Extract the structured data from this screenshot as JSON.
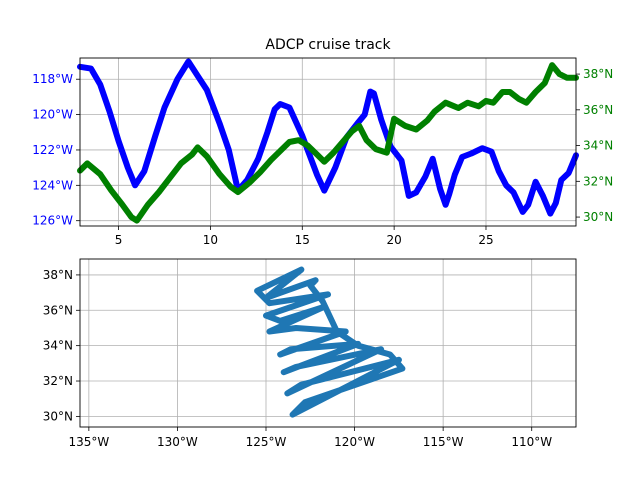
{
  "chart_data": [
    {
      "type": "line",
      "title": "ADCP cruise track",
      "xlim": [
        2.9,
        29.9
      ],
      "x_ticks": [
        5,
        10,
        15,
        20,
        25
      ],
      "x_tick_labels": [
        "5",
        "10",
        "15",
        "20",
        "25"
      ],
      "grid": true,
      "left_axis": {
        "color": "#0000ff",
        "ylim": [
          -126.3,
          -116.8
        ],
        "ticks": [
          -118,
          -120,
          -122,
          -124,
          -126
        ],
        "tick_labels": [
          "118°W",
          "120°W",
          "122°W",
          "124°W",
          "126°W"
        ]
      },
      "right_axis": {
        "color": "#008000",
        "ylim": [
          29.5,
          38.9
        ],
        "ticks": [
          30,
          32,
          34,
          36,
          38
        ],
        "tick_labels": [
          "30°N",
          "32°N",
          "34°N",
          "36°N",
          "38°N"
        ]
      },
      "series": [
        {
          "axis": "left",
          "color": "#0000ff",
          "points": [
            [
              2.9,
              -117.3
            ],
            [
              3.5,
              -117.4
            ],
            [
              4.0,
              -118.3
            ],
            [
              4.5,
              -119.8
            ],
            [
              5.0,
              -121.5
            ],
            [
              5.5,
              -123.0
            ],
            [
              5.9,
              -124.0
            ],
            [
              6.4,
              -123.2
            ],
            [
              7.0,
              -121.2
            ],
            [
              7.5,
              -119.6
            ],
            [
              8.2,
              -118.0
            ],
            [
              8.8,
              -117.0
            ],
            [
              9.3,
              -117.8
            ],
            [
              9.8,
              -118.6
            ],
            [
              10.5,
              -120.5
            ],
            [
              11.0,
              -122.0
            ],
            [
              11.5,
              -124.3
            ],
            [
              12.0,
              -123.7
            ],
            [
              12.6,
              -122.5
            ],
            [
              13.1,
              -121.0
            ],
            [
              13.5,
              -119.7
            ],
            [
              13.8,
              -119.4
            ],
            [
              14.3,
              -119.6
            ],
            [
              15.0,
              -121.2
            ],
            [
              15.8,
              -123.4
            ],
            [
              16.2,
              -124.3
            ],
            [
              16.8,
              -123.0
            ],
            [
              17.4,
              -121.3
            ],
            [
              18.0,
              -120.5
            ],
            [
              18.4,
              -120.0
            ],
            [
              18.7,
              -118.7
            ],
            [
              18.9,
              -118.8
            ],
            [
              19.3,
              -120.3
            ],
            [
              19.8,
              -121.8
            ],
            [
              20.4,
              -122.6
            ],
            [
              20.8,
              -124.6
            ],
            [
              21.2,
              -124.4
            ],
            [
              21.7,
              -123.5
            ],
            [
              22.1,
              -122.5
            ],
            [
              22.5,
              -124.2
            ],
            [
              22.8,
              -125.1
            ],
            [
              23.0,
              -124.5
            ],
            [
              23.3,
              -123.4
            ],
            [
              23.7,
              -122.4
            ],
            [
              24.2,
              -122.2
            ],
            [
              24.8,
              -121.9
            ],
            [
              25.3,
              -122.1
            ],
            [
              25.7,
              -123.2
            ],
            [
              26.1,
              -124.0
            ],
            [
              26.5,
              -124.4
            ],
            [
              27.0,
              -125.5
            ],
            [
              27.3,
              -125.1
            ],
            [
              27.7,
              -123.8
            ],
            [
              28.1,
              -124.6
            ],
            [
              28.5,
              -125.6
            ],
            [
              28.8,
              -125.0
            ],
            [
              29.1,
              -123.7
            ],
            [
              29.5,
              -123.3
            ],
            [
              29.9,
              -122.3
            ]
          ]
        },
        {
          "axis": "right",
          "color": "#008000",
          "points": [
            [
              2.9,
              32.6
            ],
            [
              3.3,
              33.0
            ],
            [
              4.0,
              32.4
            ],
            [
              4.6,
              31.5
            ],
            [
              5.2,
              30.7
            ],
            [
              5.7,
              30.0
            ],
            [
              6.0,
              29.8
            ],
            [
              6.6,
              30.7
            ],
            [
              7.2,
              31.4
            ],
            [
              7.8,
              32.2
            ],
            [
              8.4,
              33.0
            ],
            [
              9.0,
              33.5
            ],
            [
              9.3,
              33.9
            ],
            [
              9.8,
              33.4
            ],
            [
              10.5,
              32.4
            ],
            [
              11.1,
              31.7
            ],
            [
              11.5,
              31.4
            ],
            [
              12.1,
              31.9
            ],
            [
              12.7,
              32.5
            ],
            [
              13.3,
              33.2
            ],
            [
              13.9,
              33.8
            ],
            [
              14.3,
              34.2
            ],
            [
              14.8,
              34.3
            ],
            [
              15.3,
              34.0
            ],
            [
              15.8,
              33.5
            ],
            [
              16.2,
              33.1
            ],
            [
              16.7,
              33.6
            ],
            [
              17.2,
              34.2
            ],
            [
              17.7,
              34.8
            ],
            [
              18.1,
              35.1
            ],
            [
              18.5,
              34.3
            ],
            [
              19.0,
              33.8
            ],
            [
              19.6,
              33.6
            ],
            [
              20.0,
              35.5
            ],
            [
              20.6,
              35.1
            ],
            [
              21.2,
              34.9
            ],
            [
              21.8,
              35.4
            ],
            [
              22.2,
              35.9
            ],
            [
              22.8,
              36.4
            ],
            [
              23.5,
              36.1
            ],
            [
              24.0,
              36.4
            ],
            [
              24.6,
              36.2
            ],
            [
              25.0,
              36.5
            ],
            [
              25.4,
              36.4
            ],
            [
              25.9,
              37.0
            ],
            [
              26.3,
              37.0
            ],
            [
              26.8,
              36.6
            ],
            [
              27.2,
              36.4
            ],
            [
              27.7,
              37.0
            ],
            [
              28.2,
              37.5
            ],
            [
              28.6,
              38.5
            ],
            [
              29.0,
              38.0
            ],
            [
              29.4,
              37.8
            ],
            [
              29.9,
              37.8
            ]
          ]
        }
      ]
    },
    {
      "type": "scatter",
      "color": "#1f77b4",
      "xlim": [
        -135.5,
        -107.5
      ],
      "ylim": [
        29.4,
        38.9
      ],
      "grid": true,
      "x_ticks": [
        -135,
        -130,
        -125,
        -120,
        -115,
        -110
      ],
      "x_tick_labels": [
        "135°W",
        "130°W",
        "125°W",
        "120°W",
        "115°W",
        "110°W"
      ],
      "y_ticks": [
        30,
        32,
        34,
        36,
        38
      ],
      "y_tick_labels": [
        "30°N",
        "32°N",
        "34°N",
        "36°N",
        "38°N"
      ],
      "track": [
        [
          -122.2,
          37.7
        ],
        [
          -125.0,
          36.7
        ],
        [
          -123.0,
          38.3
        ],
        [
          -125.5,
          37.1
        ],
        [
          -124.8,
          36.4
        ],
        [
          -121.5,
          36.9
        ],
        [
          -125.0,
          35.7
        ],
        [
          -124.2,
          35.4
        ],
        [
          -121.7,
          36.2
        ],
        [
          -124.8,
          34.8
        ],
        [
          -123.3,
          35.0
        ],
        [
          -120.5,
          34.8
        ],
        [
          -124.2,
          33.5
        ],
        [
          -123.6,
          33.8
        ],
        [
          -119.8,
          34.1
        ],
        [
          -124.0,
          32.5
        ],
        [
          -123.3,
          32.8
        ],
        [
          -118.5,
          33.8
        ],
        [
          -123.8,
          31.3
        ],
        [
          -123.0,
          31.8
        ],
        [
          -117.5,
          33.2
        ],
        [
          -123.5,
          30.1
        ],
        [
          -122.8,
          30.8
        ],
        [
          -117.3,
          32.7
        ],
        [
          -118.0,
          33.5
        ],
        [
          -119.8,
          34.0
        ],
        [
          -121.0,
          34.8
        ],
        [
          -121.8,
          36.5
        ],
        [
          -122.5,
          37.4
        ],
        [
          -122.2,
          37.7
        ]
      ]
    }
  ]
}
